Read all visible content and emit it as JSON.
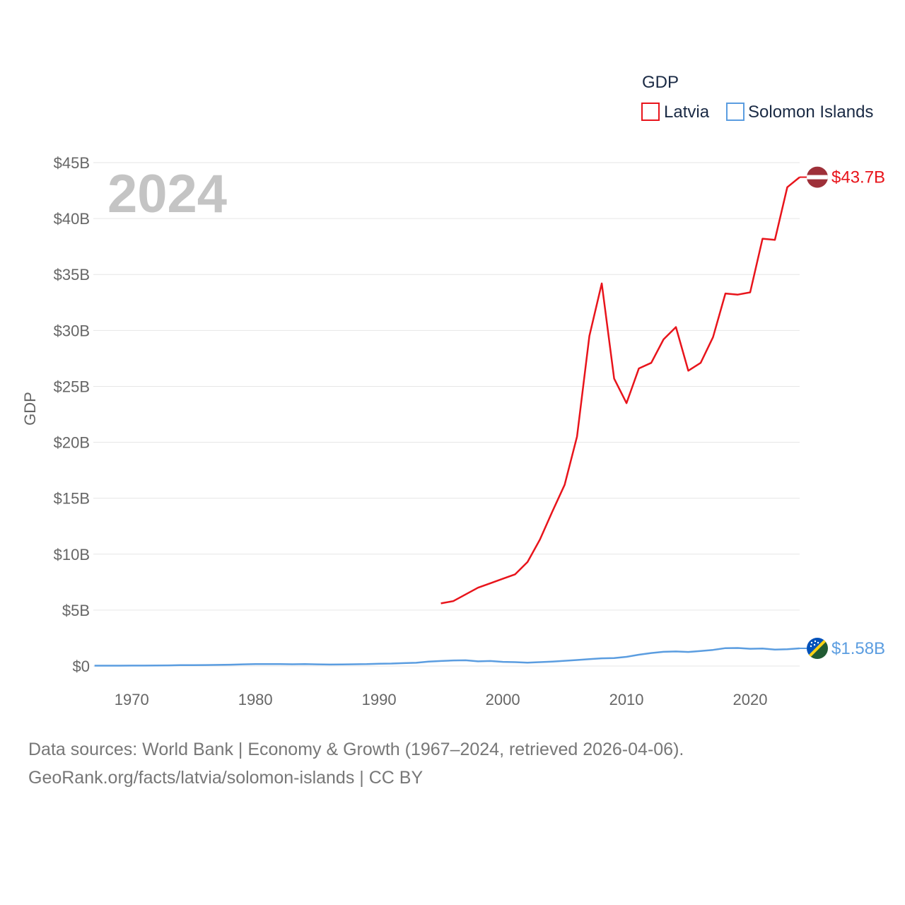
{
  "chart_data": {
    "type": "line",
    "title": "",
    "xlabel": "",
    "ylabel": "GDP",
    "year_label": "2024",
    "xlim": [
      1967,
      2024
    ],
    "ylim": [
      0,
      45
    ],
    "y_unit": "billion USD",
    "x_ticks": [
      "1970",
      "1980",
      "1990",
      "2000",
      "2010",
      "2020"
    ],
    "x_tick_values": [
      1970,
      1980,
      1990,
      2000,
      2010,
      2020
    ],
    "y_ticks": [
      "$0",
      "$5B",
      "$10B",
      "$15B",
      "$20B",
      "$25B",
      "$30B",
      "$35B",
      "$40B",
      "$45B"
    ],
    "y_tick_values": [
      0,
      5,
      10,
      15,
      20,
      25,
      30,
      35,
      40,
      45
    ],
    "legend": {
      "title": "GDP",
      "position": "top-right"
    },
    "series": [
      {
        "name": "Latvia",
        "color": "#e8141b",
        "end_label": "$43.7B",
        "flag_colors": [
          "#9e3039",
          "#ffffff"
        ],
        "x": [
          1995,
          1996,
          1997,
          1998,
          1999,
          2000,
          2001,
          2002,
          2003,
          2004,
          2005,
          2006,
          2007,
          2008,
          2009,
          2010,
          2011,
          2012,
          2013,
          2014,
          2015,
          2016,
          2017,
          2018,
          2019,
          2020,
          2021,
          2022,
          2023,
          2024
        ],
        "values": [
          5.6,
          5.8,
          6.4,
          7.0,
          7.4,
          7.8,
          8.2,
          9.3,
          11.3,
          13.8,
          16.2,
          20.5,
          29.5,
          34.2,
          25.7,
          23.5,
          26.6,
          27.1,
          29.2,
          30.3,
          26.4,
          27.1,
          29.4,
          33.3,
          33.2,
          33.4,
          38.2,
          38.1,
          42.8,
          43.7
        ]
      },
      {
        "name": "Solomon Islands",
        "color": "#5b9de0",
        "end_label": "$1.58B",
        "flag_colors": [
          "#0051ba",
          "#215b33",
          "#fcd116",
          "#ffffff"
        ],
        "x": [
          1967,
          1968,
          1969,
          1970,
          1971,
          1972,
          1973,
          1974,
          1975,
          1976,
          1977,
          1978,
          1979,
          1980,
          1981,
          1982,
          1983,
          1984,
          1985,
          1986,
          1987,
          1988,
          1989,
          1990,
          1991,
          1992,
          1993,
          1994,
          1995,
          1996,
          1997,
          1998,
          1999,
          2000,
          2001,
          2002,
          2003,
          2004,
          2005,
          2006,
          2007,
          2008,
          2009,
          2010,
          2011,
          2012,
          2013,
          2014,
          2015,
          2016,
          2017,
          2018,
          2019,
          2020,
          2021,
          2022,
          2023,
          2024
        ],
        "values": [
          0.03,
          0.03,
          0.03,
          0.04,
          0.04,
          0.05,
          0.06,
          0.08,
          0.08,
          0.09,
          0.1,
          0.12,
          0.15,
          0.17,
          0.18,
          0.18,
          0.16,
          0.17,
          0.15,
          0.13,
          0.14,
          0.16,
          0.17,
          0.21,
          0.22,
          0.26,
          0.29,
          0.39,
          0.45,
          0.5,
          0.51,
          0.42,
          0.45,
          0.37,
          0.35,
          0.3,
          0.35,
          0.4,
          0.47,
          0.54,
          0.61,
          0.69,
          0.71,
          0.82,
          1.01,
          1.16,
          1.27,
          1.3,
          1.26,
          1.34,
          1.44,
          1.6,
          1.61,
          1.54,
          1.56,
          1.47,
          1.5,
          1.58
        ]
      }
    ]
  },
  "source": {
    "line1": "Data sources: World Bank | Economy & Growth (1967–2024, retrieved 2026-04-06).",
    "line2": "GeoRank.org/facts/latvia/solomon-islands | CC BY"
  }
}
